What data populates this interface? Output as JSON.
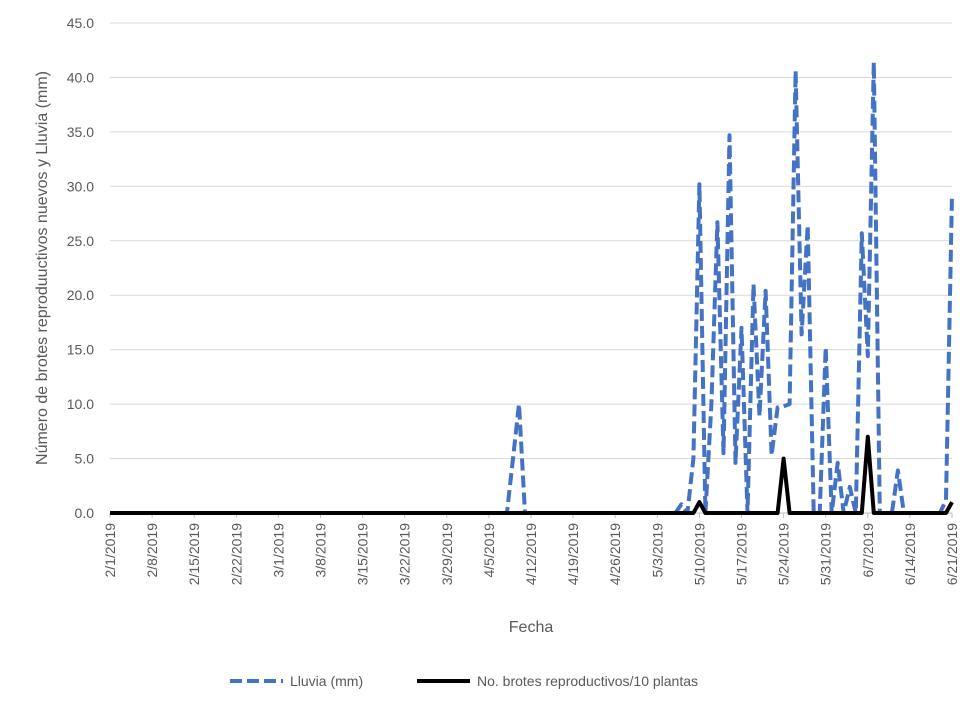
{
  "chart_data": {
    "type": "line",
    "xlabel": "Fecha",
    "ylabel": "Número de brotes reproduuctivos nuevos y Lluvia (mm)",
    "ylim": [
      0,
      45
    ],
    "yticks": [
      "0.0",
      "5.0",
      "10.0",
      "15.0",
      "20.0",
      "25.0",
      "30.0",
      "35.0",
      "40.0",
      "45.0"
    ],
    "xticks": [
      "2/1/2019",
      "2/8/2019",
      "2/15/2019",
      "2/22/2019",
      "3/1/2019",
      "3/8/2019",
      "3/15/2019",
      "3/22/2019",
      "3/29/2019",
      "4/5/2019",
      "4/12/2019",
      "4/19/2019",
      "4/26/2019",
      "5/3/2019",
      "5/10/2019",
      "5/17/2019",
      "5/24/2019",
      "5/31/2019",
      "6/7/2019",
      "6/14/2019",
      "6/21/2019"
    ],
    "grid": "horizontal",
    "legend_position": "bottom",
    "series": [
      {
        "name": "Lluvia (mm)",
        "color": "#4472C4",
        "style": "dashed",
        "points": [
          [
            "2/1/2019",
            0
          ],
          [
            "4/8/2019",
            0
          ],
          [
            "4/9/2019",
            5
          ],
          [
            "4/10/2019",
            10
          ],
          [
            "4/11/2019",
            0
          ],
          [
            "5/6/2019",
            0
          ],
          [
            "5/7/2019",
            0.8
          ],
          [
            "5/8/2019",
            0
          ],
          [
            "5/9/2019",
            5
          ],
          [
            "5/10/2019",
            30.2
          ],
          [
            "5/11/2019",
            0
          ],
          [
            "5/12/2019",
            10
          ],
          [
            "5/13/2019",
            26.7
          ],
          [
            "5/14/2019",
            5.5
          ],
          [
            "5/15/2019",
            34.7
          ],
          [
            "5/16/2019",
            4.6
          ],
          [
            "5/17/2019",
            17
          ],
          [
            "5/18/2019",
            0
          ],
          [
            "5/19/2019",
            21
          ],
          [
            "5/20/2019",
            8.9
          ],
          [
            "5/21/2019",
            20.4
          ],
          [
            "5/22/2019",
            5.3
          ],
          [
            "5/23/2019",
            9.7
          ],
          [
            "5/24/2019",
            9.8
          ],
          [
            "5/25/2019",
            10
          ],
          [
            "5/26/2019",
            40.6
          ],
          [
            "5/27/2019",
            16.4
          ],
          [
            "5/28/2019",
            26.4
          ],
          [
            "5/29/2019",
            0
          ],
          [
            "5/30/2019",
            0
          ],
          [
            "5/31/2019",
            15.2
          ],
          [
            "6/1/2019",
            0
          ],
          [
            "6/2/2019",
            4.6
          ],
          [
            "6/3/2019",
            0
          ],
          [
            "6/4/2019",
            2.4
          ],
          [
            "6/5/2019",
            0
          ],
          [
            "6/6/2019",
            25.7
          ],
          [
            "6/7/2019",
            14.4
          ],
          [
            "6/8/2019",
            41.4
          ],
          [
            "6/9/2019",
            0
          ],
          [
            "6/10/2019",
            0
          ],
          [
            "6/11/2019",
            0
          ],
          [
            "6/12/2019",
            3.9
          ],
          [
            "6/13/2019",
            0
          ],
          [
            "6/19/2019",
            0
          ],
          [
            "6/20/2019",
            1.2
          ],
          [
            "6/21/2019",
            29.3
          ]
        ]
      },
      {
        "name": "No. brotes reproductivos/10 plantas",
        "color": "#000000",
        "style": "solid",
        "points": [
          [
            "2/1/2019",
            0
          ],
          [
            "5/9/2019",
            0
          ],
          [
            "5/10/2019",
            1
          ],
          [
            "5/11/2019",
            0
          ],
          [
            "5/23/2019",
            0
          ],
          [
            "5/24/2019",
            5
          ],
          [
            "5/25/2019",
            0
          ],
          [
            "6/6/2019",
            0
          ],
          [
            "6/7/2019",
            7
          ],
          [
            "6/8/2019",
            0
          ],
          [
            "6/20/2019",
            0
          ],
          [
            "6/21/2019",
            1
          ]
        ]
      }
    ]
  }
}
